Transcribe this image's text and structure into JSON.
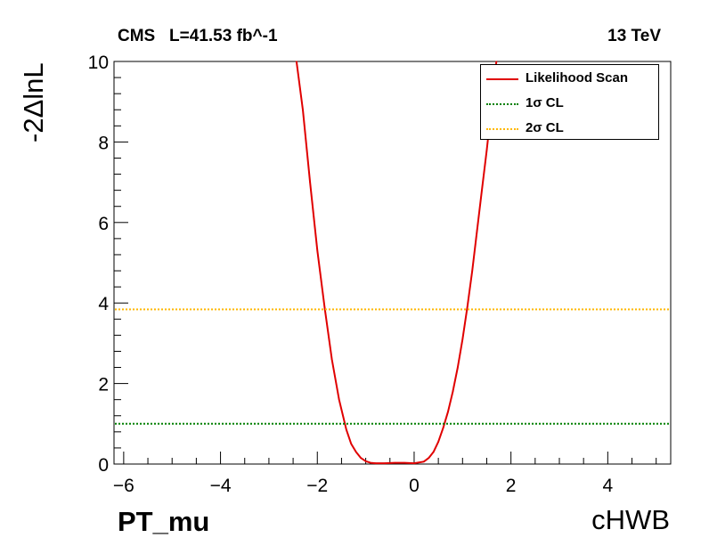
{
  "header": {
    "experiment_lumi": "CMS   L=41.53 fb^-1",
    "energy": "13 TeV"
  },
  "figure_label": "PT_mu",
  "chart_data": {
    "type": "line",
    "xlabel": "cHWB",
    "ylabel": "-2ΔlnL",
    "xlim": [
      -6.2,
      5.3
    ],
    "ylim": [
      0,
      10
    ],
    "x_ticks": [
      -6,
      -4,
      -2,
      0,
      2,
      4
    ],
    "x_tick_labels": [
      "−6",
      "−4",
      "−2",
      "0",
      "2",
      "4"
    ],
    "y_ticks": [
      0,
      2,
      4,
      6,
      8,
      10
    ],
    "y_tick_labels": [
      "0",
      "2",
      "4",
      "6",
      "8",
      "10"
    ],
    "grid": false,
    "legend_position": "top-right",
    "series": [
      {
        "name": "Likelihood Scan",
        "color": "#e00000",
        "style": "solid",
        "x": [
          -2.43,
          -2.3,
          -2.15,
          -2.0,
          -1.85,
          -1.7,
          -1.55,
          -1.4,
          -1.3,
          -1.2,
          -1.1,
          -1.0,
          -0.9,
          -0.8,
          -0.6,
          -0.4,
          -0.2,
          0.0,
          0.2,
          0.3,
          0.4,
          0.5,
          0.6,
          0.7,
          0.8,
          0.9,
          1.0,
          1.1,
          1.2,
          1.3,
          1.4,
          1.5,
          1.6,
          1.7
        ],
        "y": [
          10.0,
          8.8,
          7.0,
          5.3,
          3.9,
          2.6,
          1.6,
          0.85,
          0.5,
          0.3,
          0.15,
          0.07,
          0.03,
          0.02,
          0.02,
          0.03,
          0.03,
          0.02,
          0.06,
          0.15,
          0.3,
          0.55,
          0.9,
          1.3,
          1.8,
          2.4,
          3.1,
          3.9,
          4.8,
          5.8,
          6.8,
          7.8,
          8.9,
          10.0
        ]
      },
      {
        "name": "1σ CL",
        "color": "#008000",
        "style": "dotted",
        "y_const": 1.0
      },
      {
        "name": "2σ CL",
        "color": "#ffb800",
        "style": "dotted",
        "y_const": 3.84
      }
    ]
  }
}
